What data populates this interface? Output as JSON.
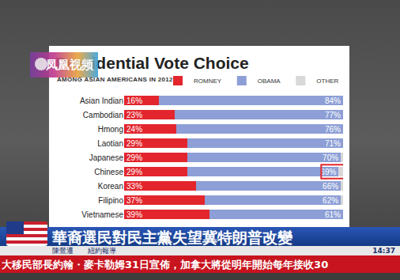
{
  "chart_data": {
    "type": "bar",
    "orientation": "horizontal",
    "stacked": true,
    "title": "Presidential Vote Choice",
    "subtitle": "AMONG ASIAN AMERICANS IN 2012",
    "categories": [
      "Asian Indian",
      "Cambodian",
      "Hmong",
      "Laotian",
      "Japanese",
      "Chinese",
      "Korean",
      "Filipino",
      "Vietnamese"
    ],
    "series": [
      {
        "name": "ROMNEY",
        "color": "#e3262d",
        "data_labels": true,
        "values": [
          16,
          23,
          24,
          29,
          29,
          29,
          33,
          37,
          39
        ],
        "value_labels": [
          "16%",
          "23%",
          "24%",
          "29%",
          "29%",
          "29%",
          "33%",
          "37%",
          "39%"
        ]
      },
      {
        "name": "OBAMA",
        "color": "#8d9fd6",
        "data_labels": true,
        "values": [
          84,
          77,
          76,
          71,
          70,
          69,
          66,
          62,
          61
        ],
        "value_labels": [
          "84%",
          "77%",
          "76%",
          "71%",
          "70%",
          "69%",
          "66%",
          "62%",
          "61%"
        ]
      },
      {
        "name": "OTHER",
        "color": "#d8d8d8",
        "data_labels": false,
        "values": [
          0,
          0,
          0,
          0,
          1,
          2,
          1,
          1,
          0
        ]
      }
    ],
    "xlim": [
      0,
      100
    ],
    "xticks": [],
    "tick_labels": "y",
    "grid": false,
    "legend": "top right",
    "highlight": {
      "category": "Chinese",
      "series": "OBAMA"
    },
    "annotations": {
      "logo": "凤凰视频",
      "headline": "華裔選民對民主黨失望冀特朗普改變",
      "reporter": "陳鶯遷",
      "location": "紐約報導",
      "time": "14:37",
      "ticker": "大移民部長約翰・麥卡勒姆31日宣佈，加拿大將從明年開始每年接收30"
    }
  }
}
